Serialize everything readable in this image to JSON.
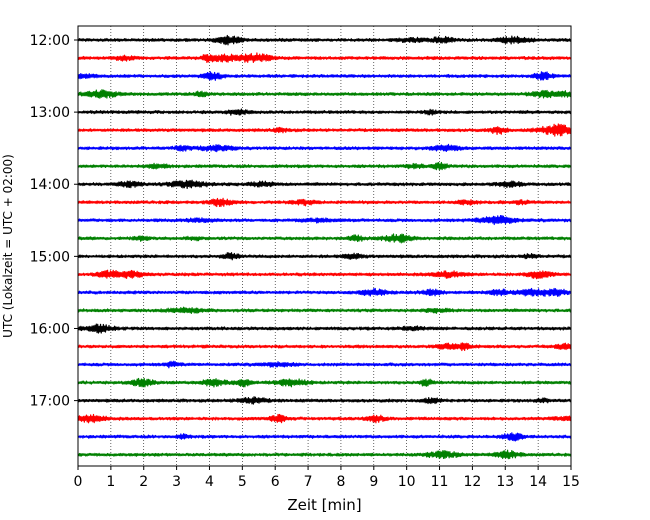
{
  "chart_data": {
    "type": "line",
    "subtype": "helicorder-seismogram",
    "xlabel": "Zeit  [min]",
    "ylabel": "UTC (Lokalzeit = UTC + 02:00)",
    "xlim": [
      0,
      15
    ],
    "x_ticks": [
      "0",
      "1",
      "2",
      "3",
      "4",
      "5",
      "6",
      "7",
      "8",
      "9",
      "10",
      "11",
      "12",
      "13",
      "14",
      "15"
    ],
    "y_tick_labels": [
      "12:00",
      "13:00",
      "14:00",
      "15:00",
      "16:00",
      "17:00"
    ],
    "traces_per_hour": 4,
    "trace_start_times": [
      "12:00",
      "12:15",
      "12:30",
      "12:45",
      "13:00",
      "13:15",
      "13:30",
      "13:45",
      "14:00",
      "14:15",
      "14:30",
      "14:45",
      "15:00",
      "15:15",
      "15:30",
      "15:45",
      "16:00",
      "16:15",
      "16:30",
      "16:45",
      "17:00",
      "17:15",
      "17:30",
      "17:45"
    ],
    "color_cycle": [
      "#000000",
      "#ff0000",
      "#0000ff",
      "#008000"
    ],
    "grid": "vertical dotted at each minute",
    "legend": "none"
  }
}
